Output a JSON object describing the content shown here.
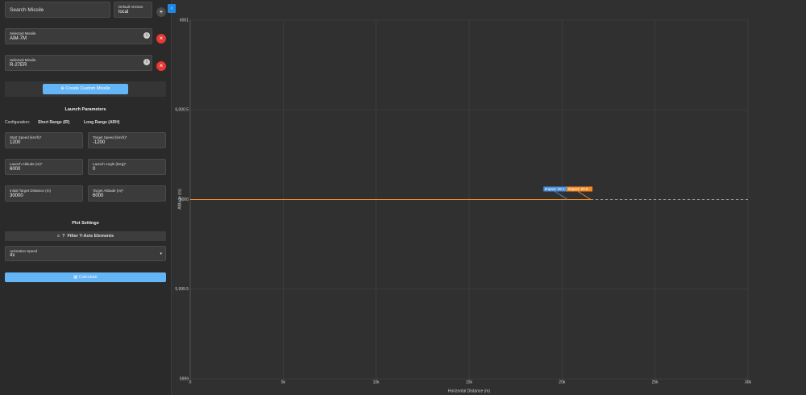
{
  "sidebar": {
    "search_placeholder": "Search Missile",
    "version_label": "Default Version",
    "version_value": "local",
    "selected": [
      {
        "label": "Selected Missile",
        "value": "AIM-7M"
      },
      {
        "label": "Selected Missile",
        "value": "R-27ER"
      }
    ],
    "create_button": "Create Custom Missile",
    "launch_title": "Launch Parameters",
    "config_label": "Configuration:",
    "config_options": [
      "Short Range (IR)",
      "Long Range (ARH)"
    ],
    "fields": [
      {
        "label": "Start Speed (km/h)*",
        "value": 1200
      },
      {
        "label": "Target Speed (km/h)*",
        "value": -1200
      },
      {
        "label": "Launch Altitude (m)*",
        "value": 6000
      },
      {
        "label": "Launch Angle (Deg)*",
        "value": 0
      },
      {
        "label": "Initial Target Distance (m)",
        "value": 30000
      },
      {
        "label": "Target Altitude (m)*",
        "value": 6000
      }
    ],
    "plot_title": "Plot Settings",
    "filter_button": "Filter Y-Axis Elements",
    "animation": {
      "label": "Animation Speed",
      "value": "4x"
    },
    "calculate_button": "Calculate"
  },
  "chart_data": {
    "type": "line",
    "x_label": "Horizontal Distance (m)",
    "y_label": "Altitude (m)",
    "xlim": [
      0,
      30000
    ],
    "ylim": [
      5999,
      6001
    ],
    "xticks": [
      0,
      {
        "value": 5000,
        "label": "5k"
      },
      {
        "value": 10000,
        "label": "10k"
      },
      {
        "value": 15000,
        "label": "15k"
      },
      {
        "value": 20000,
        "label": "20k"
      },
      {
        "value": 25000,
        "label": "25k"
      },
      {
        "value": 30000,
        "label": "30k"
      }
    ],
    "yticks": [
      5999,
      {
        "value": 5999.5,
        "label": "5,999.5"
      },
      6000,
      {
        "value": 6000.5,
        "label": "6,000.5"
      },
      6001
    ],
    "grid": true,
    "series": [
      {
        "name": "AIM-7M",
        "color": "#4a90d9",
        "x": [
          0,
          20300
        ],
        "values": [
          6000,
          6000
        ]
      },
      {
        "name": "R-27ER",
        "color": "#f28c28",
        "x": [
          0,
          21550
        ],
        "values": [
          6000,
          6000
        ]
      },
      {
        "color": "#9a9a9a",
        "dashed": true,
        "x": [
          21550,
          30000
        ],
        "values": [
          6000,
          6000
        ]
      }
    ],
    "annotations": [
      {
        "text": "Impact: 29.1",
        "x": 20300,
        "y": 6000,
        "color": "#4a90d9"
      },
      {
        "text": "Impact: 20.5",
        "x": 21550,
        "y": 6000,
        "color": "#f28c28"
      }
    ]
  }
}
